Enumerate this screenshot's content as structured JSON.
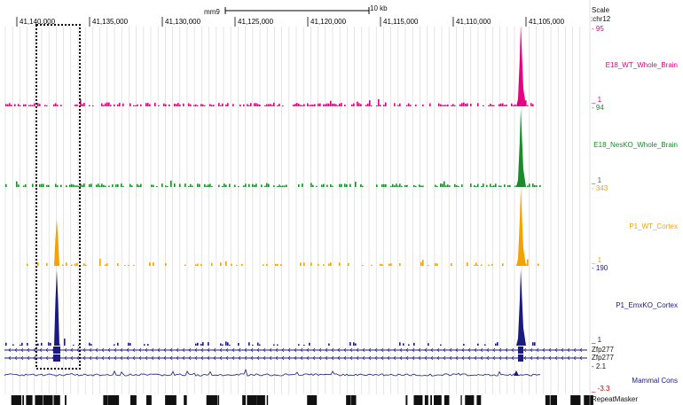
{
  "browser": {
    "assembly": "mm9",
    "scale_bar_label": "10 kb",
    "scale_header": "Scale",
    "chrom": "chr12",
    "coordinate_ticks": [
      {
        "label": "41,140,000"
      },
      {
        "label": "41,135,000"
      },
      {
        "label": "41,130,000"
      },
      {
        "label": "41,125,000"
      },
      {
        "label": "41,120,000"
      },
      {
        "label": "41,115,000"
      },
      {
        "label": "41,110,000"
      },
      {
        "label": "41,105,000"
      }
    ]
  },
  "tracks": [
    {
      "name": "E18_WT_Whole_Brain",
      "color": "#e6007e",
      "max_label": "95",
      "min_label": "1"
    },
    {
      "name": "E18_NesKO_Whole_Brain",
      "color": "#1a8a2a",
      "max_label": "94",
      "min_label": "1"
    },
    {
      "name": "P1_WT_Cortex",
      "color": "#f5a100",
      "max_label": "343",
      "min_label": "1"
    },
    {
      "name": "P1_EmxKO_Cortex",
      "color": "#1a1a80",
      "max_label": "190",
      "min_label": "1"
    }
  ],
  "genes": [
    {
      "name": "Zfp277",
      "color": "#1a1a80"
    },
    {
      "name": "Zfp277",
      "color": "#1a1a80"
    }
  ],
  "conservation": {
    "name": "Mammal Cons",
    "max_label": "2.1",
    "min_label": "-3.3",
    "color": "#1a1a80"
  },
  "repeat_masker": {
    "name": "RepeatMasker"
  }
}
